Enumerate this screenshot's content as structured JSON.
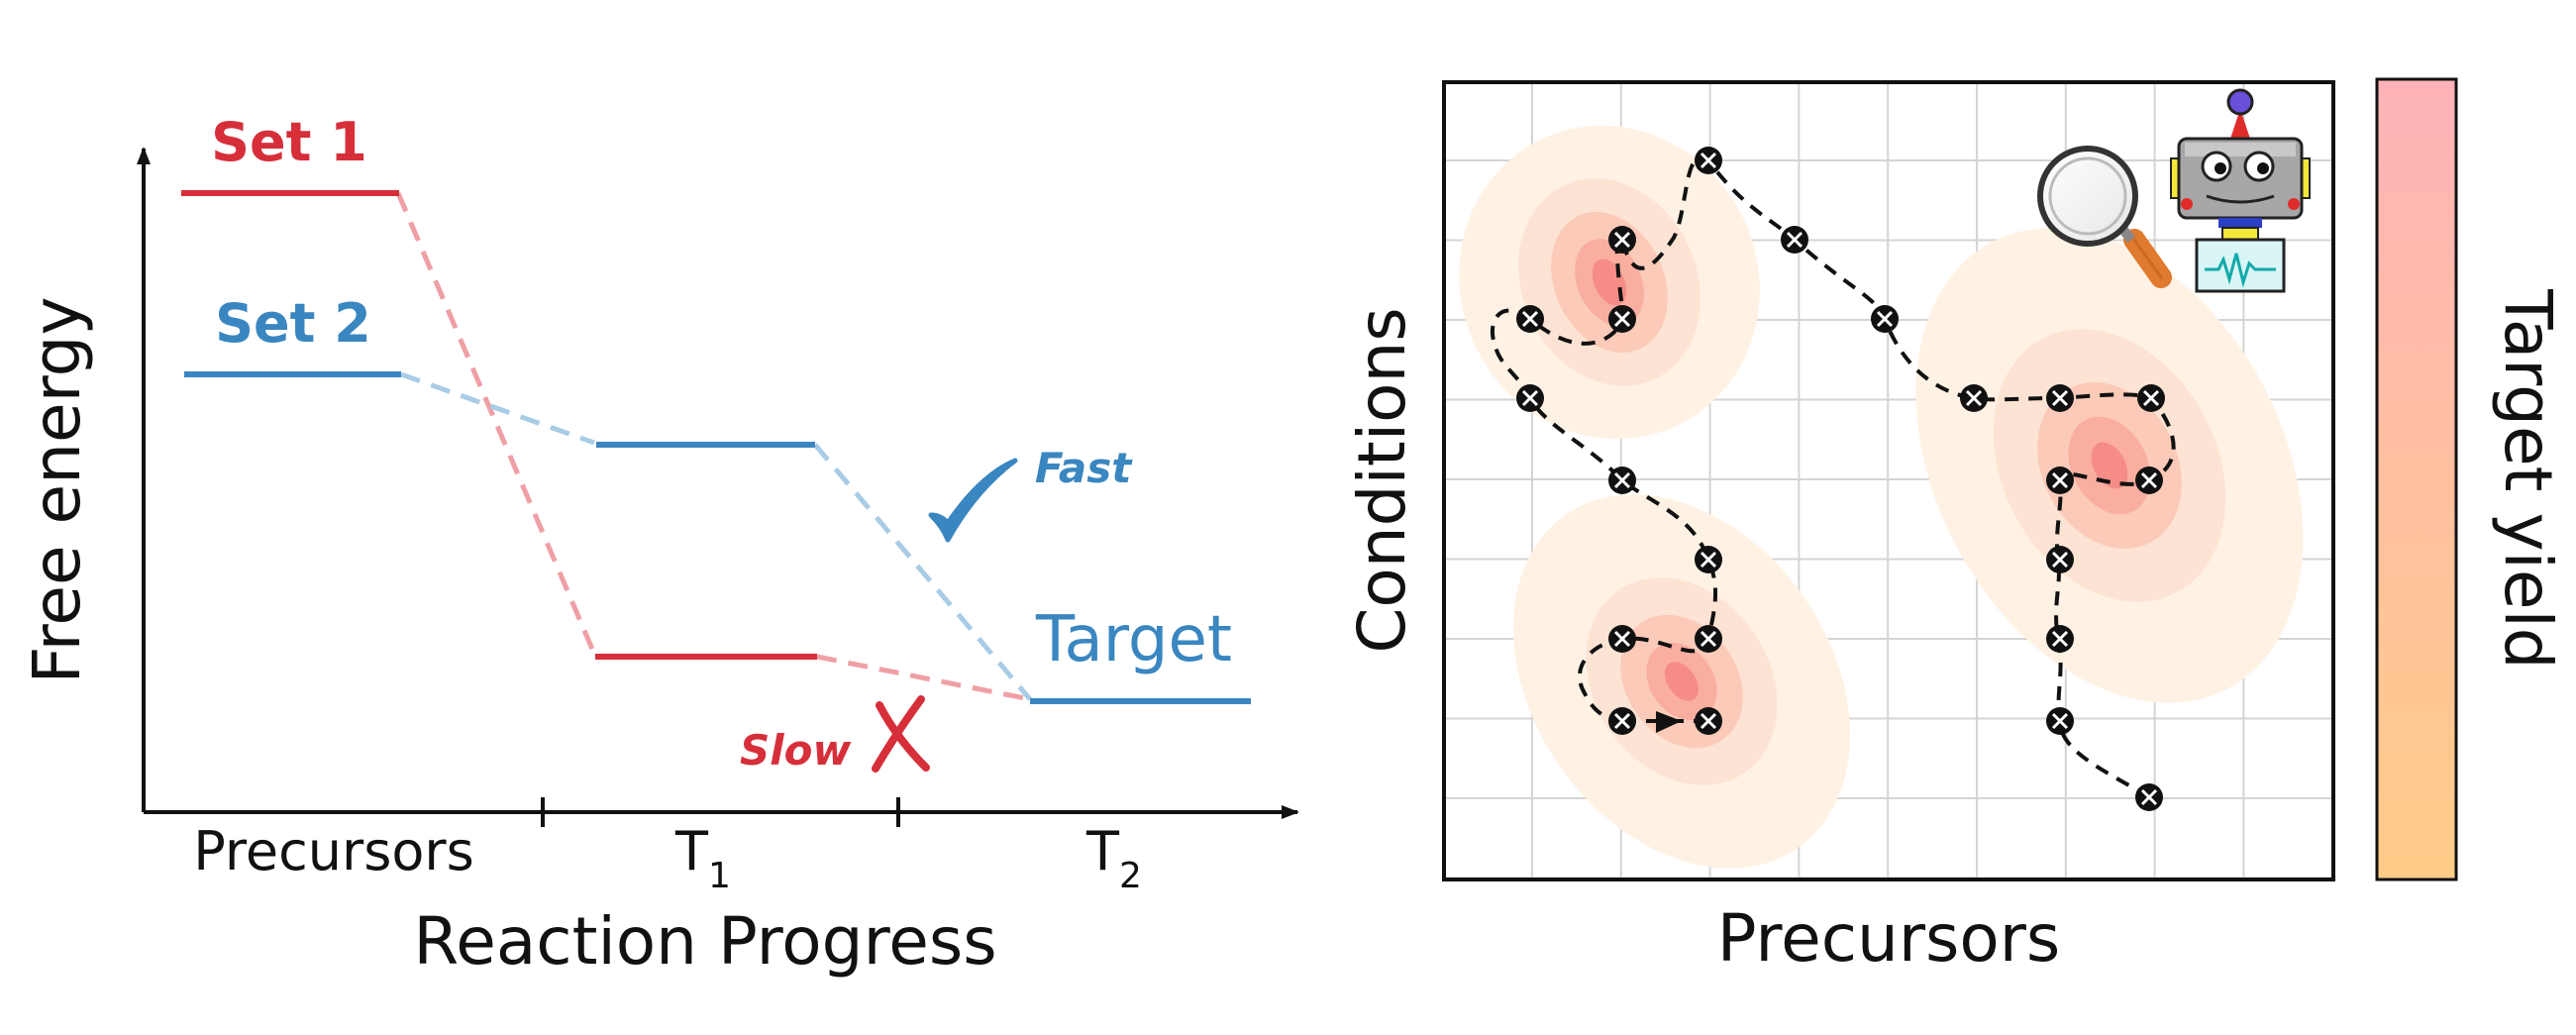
{
  "energy_diagram": {
    "y_axis_label": "Free energy",
    "x_axis_label": "Reaction Progress",
    "stage_labels": {
      "precursors": "Precursors",
      "t1_main": "T",
      "t1_sub": "1",
      "t2_main": "T",
      "t2_sub": "2"
    },
    "set1_label": "Set 1",
    "set2_label": "Set 2",
    "target_label": "Target",
    "fast_label": "Fast",
    "slow_label": "Slow",
    "set1_color": "#d62f3a",
    "set2_color": "#3a86c0",
    "set1_dashed_color": "#ef9fa5",
    "set2_dashed_color": "#a9cce6",
    "checkmark_icon": "checkmark-icon",
    "cross_icon": "cross-icon"
  },
  "optimization_map": {
    "x_axis_label": "Precursors",
    "y_axis_label": "Conditions",
    "colorbar_label": "Target yield",
    "colorbar_top_color": "#ffb3b8",
    "colorbar_bottom_color": "#ffcc88",
    "hotspot_color": "#f4717a",
    "robot_icon": "robot-icon",
    "magnifier_icon": "magnifier-icon"
  }
}
